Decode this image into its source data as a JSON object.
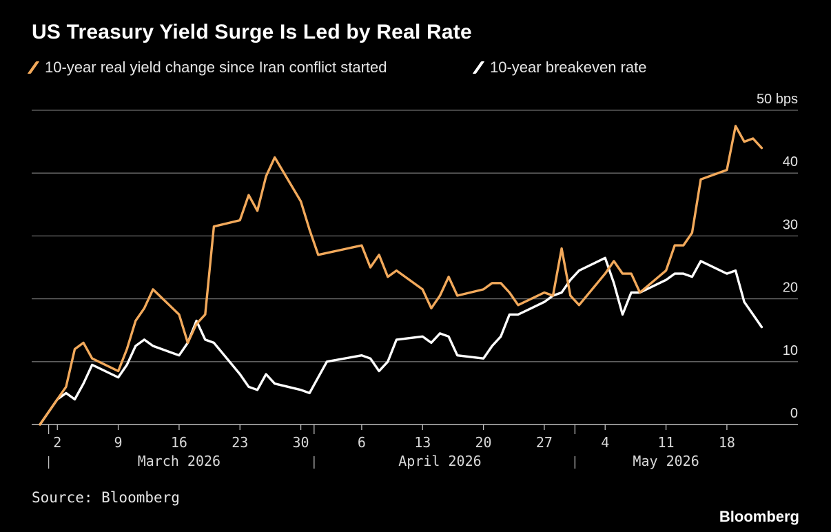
{
  "title": "US Treasury Yield Surge Is Led by Real Rate",
  "source": "Source: Bloomberg",
  "brand": "Bloomberg",
  "colors": {
    "real_yield": "#f2a95b",
    "breakeven": "#ffffff",
    "grid": "#6e6e6e",
    "background": "#000000"
  },
  "chart_data": {
    "type": "line",
    "x_axis": {
      "tick_labels": [
        "2",
        "9",
        "16",
        "23",
        "30",
        "6",
        "13",
        "20",
        "27",
        "4",
        "11",
        "18"
      ],
      "tick_dates": [
        "2026-03-02",
        "2026-03-09",
        "2026-03-16",
        "2026-03-23",
        "2026-03-30",
        "2026-04-06",
        "2026-04-13",
        "2026-04-20",
        "2026-04-27",
        "2026-05-04",
        "2026-05-11",
        "2026-05-18"
      ],
      "month_labels": [
        {
          "label": "March 2026",
          "center": "2026-03-16"
        },
        {
          "label": "April 2026",
          "center": "2026-04-15"
        },
        {
          "label": "May 2026",
          "center": "2026-05-11"
        }
      ],
      "month_boundaries": [
        "2026-03-01",
        "2026-04-01",
        "2026-05-01"
      ],
      "range": [
        "2026-02-28",
        "2026-05-23"
      ]
    },
    "y_axis": {
      "unit": "bps",
      "ticks": [
        0,
        10,
        20,
        30,
        40,
        50
      ],
      "tick_labels": [
        "0",
        "10",
        "20",
        "30",
        "40",
        "50 bps"
      ],
      "ylim": [
        0,
        50
      ],
      "position": "right"
    },
    "grid": true,
    "legend": "top-left",
    "series": [
      {
        "name": "10-year real yield change since Iran conflict started",
        "color": "#f2a95b",
        "points": [
          [
            "2026-02-28",
            0
          ],
          [
            "2026-03-02",
            4
          ],
          [
            "2026-03-03",
            6
          ],
          [
            "2026-03-04",
            12
          ],
          [
            "2026-03-05",
            13
          ],
          [
            "2026-03-06",
            10.5
          ],
          [
            "2026-03-09",
            8.5
          ],
          [
            "2026-03-10",
            12
          ],
          [
            "2026-03-11",
            16.5
          ],
          [
            "2026-03-12",
            18.5
          ],
          [
            "2026-03-13",
            21.5
          ],
          [
            "2026-03-16",
            17.5
          ],
          [
            "2026-03-17",
            13
          ],
          [
            "2026-03-18",
            16
          ],
          [
            "2026-03-19",
            17.5
          ],
          [
            "2026-03-20",
            31.5
          ],
          [
            "2026-03-23",
            32.5
          ],
          [
            "2026-03-24",
            36.5
          ],
          [
            "2026-03-25",
            34
          ],
          [
            "2026-03-26",
            39.5
          ],
          [
            "2026-03-27",
            42.5
          ],
          [
            "2026-03-30",
            35.5
          ],
          [
            "2026-03-31",
            31
          ],
          [
            "2026-04-01",
            27
          ],
          [
            "2026-04-06",
            28.5
          ],
          [
            "2026-04-07",
            25
          ],
          [
            "2026-04-08",
            27
          ],
          [
            "2026-04-09",
            23.5
          ],
          [
            "2026-04-10",
            24.5
          ],
          [
            "2026-04-13",
            21.5
          ],
          [
            "2026-04-14",
            18.5
          ],
          [
            "2026-04-15",
            20.5
          ],
          [
            "2026-04-16",
            23.5
          ],
          [
            "2026-04-17",
            20.5
          ],
          [
            "2026-04-20",
            21.5
          ],
          [
            "2026-04-21",
            22.5
          ],
          [
            "2026-04-22",
            22.5
          ],
          [
            "2026-04-23",
            21
          ],
          [
            "2026-04-24",
            19
          ],
          [
            "2026-04-27",
            21
          ],
          [
            "2026-04-28",
            20.5
          ],
          [
            "2026-04-29",
            28
          ],
          [
            "2026-04-30",
            20.5
          ],
          [
            "2026-05-01",
            19
          ],
          [
            "2026-05-04",
            24
          ],
          [
            "2026-05-05",
            26
          ],
          [
            "2026-05-06",
            24
          ],
          [
            "2026-05-07",
            24
          ],
          [
            "2026-05-08",
            21
          ],
          [
            "2026-05-11",
            24.5
          ],
          [
            "2026-05-12",
            28.5
          ],
          [
            "2026-05-13",
            28.5
          ],
          [
            "2026-05-14",
            30.5
          ],
          [
            "2026-05-15",
            39
          ],
          [
            "2026-05-18",
            40.5
          ],
          [
            "2026-05-19",
            47.5
          ],
          [
            "2026-05-20",
            45
          ],
          [
            "2026-05-21",
            45.5
          ],
          [
            "2026-05-22",
            44
          ]
        ]
      },
      {
        "name": "10-year breakeven rate",
        "color": "#ffffff",
        "points": [
          [
            "2026-02-28",
            0
          ],
          [
            "2026-03-02",
            4
          ],
          [
            "2026-03-03",
            5
          ],
          [
            "2026-03-04",
            4
          ],
          [
            "2026-03-05",
            6.5
          ],
          [
            "2026-03-06",
            9.5
          ],
          [
            "2026-03-09",
            7.5
          ],
          [
            "2026-03-10",
            9.5
          ],
          [
            "2026-03-11",
            12.5
          ],
          [
            "2026-03-12",
            13.5
          ],
          [
            "2026-03-13",
            12.5
          ],
          [
            "2026-03-16",
            11
          ],
          [
            "2026-03-17",
            13
          ],
          [
            "2026-03-18",
            16.5
          ],
          [
            "2026-03-19",
            13.5
          ],
          [
            "2026-03-20",
            13
          ],
          [
            "2026-03-23",
            8
          ],
          [
            "2026-03-24",
            6
          ],
          [
            "2026-03-25",
            5.5
          ],
          [
            "2026-03-26",
            8
          ],
          [
            "2026-03-27",
            6.5
          ],
          [
            "2026-03-30",
            5.5
          ],
          [
            "2026-03-31",
            5
          ],
          [
            "2026-04-01",
            7.5
          ],
          [
            "2026-04-02",
            10
          ],
          [
            "2026-04-06",
            11
          ],
          [
            "2026-04-07",
            10.5
          ],
          [
            "2026-04-08",
            8.5
          ],
          [
            "2026-04-09",
            10
          ],
          [
            "2026-04-10",
            13.5
          ],
          [
            "2026-04-13",
            14
          ],
          [
            "2026-04-14",
            13
          ],
          [
            "2026-04-15",
            14.5
          ],
          [
            "2026-04-16",
            14
          ],
          [
            "2026-04-17",
            11
          ],
          [
            "2026-04-20",
            10.5
          ],
          [
            "2026-04-21",
            12.5
          ],
          [
            "2026-04-22",
            14
          ],
          [
            "2026-04-23",
            17.5
          ],
          [
            "2026-04-24",
            17.5
          ],
          [
            "2026-04-27",
            19.5
          ],
          [
            "2026-04-28",
            20.5
          ],
          [
            "2026-04-29",
            21
          ],
          [
            "2026-04-30",
            23
          ],
          [
            "2026-05-01",
            24.5
          ],
          [
            "2026-05-04",
            26.5
          ],
          [
            "2026-05-05",
            22.5
          ],
          [
            "2026-05-06",
            17.5
          ],
          [
            "2026-05-07",
            21
          ],
          [
            "2026-05-08",
            21
          ],
          [
            "2026-05-11",
            23
          ],
          [
            "2026-05-12",
            24
          ],
          [
            "2026-05-13",
            24
          ],
          [
            "2026-05-14",
            23.5
          ],
          [
            "2026-05-15",
            26
          ],
          [
            "2026-05-18",
            24
          ],
          [
            "2026-05-19",
            24.5
          ],
          [
            "2026-05-20",
            19.5
          ],
          [
            "2026-05-21",
            17.5
          ],
          [
            "2026-05-22",
            15.5
          ]
        ]
      }
    ]
  }
}
